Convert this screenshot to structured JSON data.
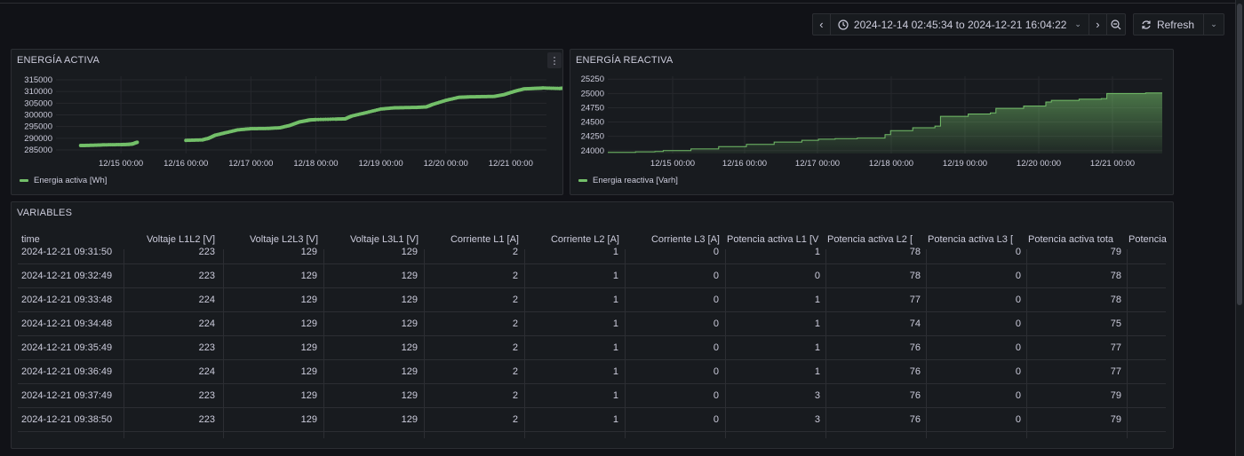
{
  "toolbar": {
    "prev_label": "‹",
    "next_label": "›",
    "time_range": "2024-12-14 02:45:34 to 2024-12-21 16:04:22",
    "refresh_label": "Refresh"
  },
  "panel_active": {
    "title": "ENERGÍA ACTIVA",
    "menu_label": "⋮",
    "legend": "Energia activa [Wh]"
  },
  "panel_reactive": {
    "title": "ENERGÍA REACTIVA",
    "legend": "Energia reactiva [Varh]"
  },
  "chart_data": [
    {
      "type": "scatter",
      "title": "ENERGÍA ACTIVA",
      "x_ticks": [
        "12/15 00:00",
        "12/16 00:00",
        "12/17 00:00",
        "12/18 00:00",
        "12/19 00:00",
        "12/20 00:00",
        "12/21 00:00"
      ],
      "y_ticks": [
        285000,
        290000,
        295000,
        300000,
        305000,
        310000,
        315000
      ],
      "ylim": [
        283500,
        316500
      ],
      "xlim_days": [
        0,
        7.55
      ],
      "grid": true,
      "legend_position": "bottom-left",
      "series": [
        {
          "name": "Energia activa [Wh]",
          "color": "#73bf69",
          "points": [
            [
              0.38,
              286900
            ],
            [
              0.55,
              287000
            ],
            [
              0.75,
              287200
            ],
            [
              1.0,
              287300
            ],
            [
              1.12,
              287400
            ],
            [
              1.18,
              287600
            ],
            [
              1.25,
              288300
            ],
            [
              2.0,
              289100
            ],
            [
              2.25,
              289300
            ],
            [
              2.35,
              290000
            ],
            [
              2.45,
              291300
            ],
            [
              2.6,
              292300
            ],
            [
              2.8,
              293600
            ],
            [
              3.0,
              294100
            ],
            [
              3.25,
              294200
            ],
            [
              3.45,
              294500
            ],
            [
              3.6,
              295500
            ],
            [
              3.75,
              297000
            ],
            [
              3.85,
              297500
            ],
            [
              3.9,
              297800
            ],
            [
              4.0,
              298000
            ],
            [
              4.3,
              298200
            ],
            [
              4.45,
              298300
            ],
            [
              4.55,
              299500
            ],
            [
              4.75,
              300800
            ],
            [
              5.0,
              302500
            ],
            [
              5.2,
              303000
            ],
            [
              5.35,
              303100
            ],
            [
              5.55,
              303200
            ],
            [
              5.7,
              303400
            ],
            [
              5.8,
              304500
            ],
            [
              6.0,
              306200
            ],
            [
              6.2,
              307500
            ],
            [
              6.35,
              307700
            ],
            [
              6.55,
              307800
            ],
            [
              6.75,
              307900
            ],
            [
              6.9,
              308700
            ],
            [
              7.05,
              310000
            ],
            [
              7.2,
              311100
            ],
            [
              7.35,
              311300
            ],
            [
              7.5,
              311500
            ],
            [
              7.75,
              311300
            ],
            [
              7.88,
              311600
            ],
            [
              7.93,
              313000
            ]
          ]
        }
      ]
    },
    {
      "type": "area",
      "title": "ENERGÍA REACTIVA",
      "x_ticks": [
        "12/15 00:00",
        "12/16 00:00",
        "12/17 00:00",
        "12/18 00:00",
        "12/19 00:00",
        "12/20 00:00",
        "12/21 00:00"
      ],
      "y_ticks": [
        24000,
        24250,
        24500,
        24750,
        25000,
        25250
      ],
      "ylim": [
        23950,
        25300
      ],
      "grid": true,
      "legend_position": "bottom-left",
      "series": [
        {
          "name": "Energia reactiva [Varh]",
          "color": "#73bf69",
          "points": [
            [
              0,
              23970
            ],
            [
              0.5,
              23980
            ],
            [
              0.85,
              23985
            ],
            [
              1.0,
              24000
            ],
            [
              1.5,
              24030
            ],
            [
              2.0,
              24070
            ],
            [
              2.5,
              24110
            ],
            [
              3.0,
              24150
            ],
            [
              3.5,
              24180
            ],
            [
              3.8,
              24200
            ],
            [
              4.1,
              24210
            ],
            [
              4.5,
              24220
            ],
            [
              5.0,
              24280
            ],
            [
              5.1,
              24350
            ],
            [
              5.5,
              24400
            ],
            [
              5.9,
              24430
            ],
            [
              6.0,
              24600
            ],
            [
              6.5,
              24640
            ],
            [
              6.9,
              24660
            ],
            [
              7.0,
              24740
            ],
            [
              7.5,
              24780
            ],
            [
              7.9,
              24850
            ],
            [
              8.0,
              24880
            ],
            [
              8.5,
              24900
            ],
            [
              8.9,
              24910
            ],
            [
              9.0,
              25000
            ],
            [
              9.7,
              25010
            ],
            [
              10.0,
              25010
            ]
          ]
        }
      ]
    }
  ],
  "table": {
    "title": "VARIABLES",
    "columns": [
      "time",
      "Voltaje L1L2 [V]",
      "Voltaje L2L3 [V]",
      "Voltaje L3L1 [V]",
      "Corriente L1 [A]",
      "Corriente L2 [A]",
      "Corriente L3 [A]",
      "Potencia activa L1 [V",
      "Potencia activa L2 [",
      "Potencia activa L3 [",
      "Potencia activa tota",
      "Potencia"
    ],
    "rows": [
      [
        "2024-12-21 09:31:50",
        "223",
        "129",
        "129",
        "2",
        "1",
        "0",
        "1",
        "78",
        "0",
        "79",
        ""
      ],
      [
        "2024-12-21 09:32:49",
        "223",
        "129",
        "129",
        "2",
        "1",
        "0",
        "0",
        "78",
        "0",
        "78",
        ""
      ],
      [
        "2024-12-21 09:33:48",
        "224",
        "129",
        "129",
        "2",
        "1",
        "0",
        "1",
        "77",
        "0",
        "78",
        ""
      ],
      [
        "2024-12-21 09:34:48",
        "224",
        "129",
        "129",
        "2",
        "1",
        "0",
        "1",
        "74",
        "0",
        "75",
        ""
      ],
      [
        "2024-12-21 09:35:49",
        "223",
        "129",
        "129",
        "2",
        "1",
        "0",
        "1",
        "76",
        "0",
        "77",
        ""
      ],
      [
        "2024-12-21 09:36:49",
        "224",
        "129",
        "129",
        "2",
        "1",
        "0",
        "1",
        "76",
        "0",
        "77",
        ""
      ],
      [
        "2024-12-21 09:37:49",
        "223",
        "129",
        "129",
        "2",
        "1",
        "0",
        "3",
        "76",
        "0",
        "79",
        ""
      ],
      [
        "2024-12-21 09:38:50",
        "223",
        "129",
        "129",
        "2",
        "1",
        "0",
        "3",
        "76",
        "0",
        "79",
        ""
      ]
    ]
  },
  "colors": {
    "background": "#111217",
    "panel": "#181b1f",
    "border": "#2c2e33",
    "series": "#73bf69",
    "text": "#ccccdc"
  }
}
